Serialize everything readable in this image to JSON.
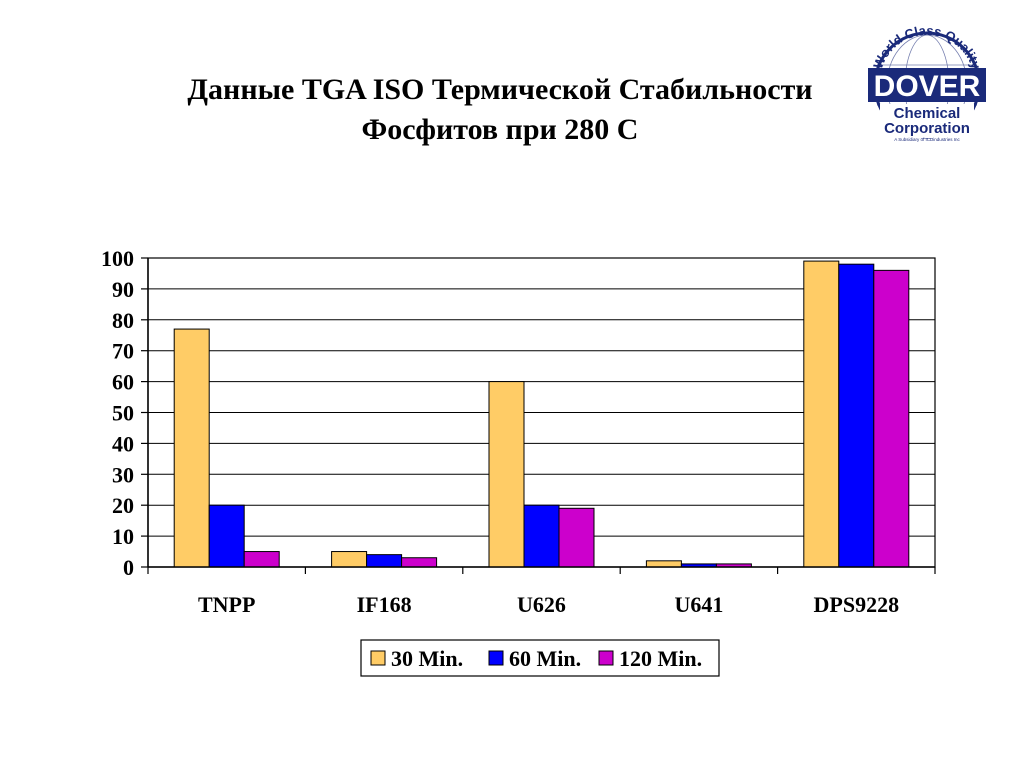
{
  "chart_data": {
    "type": "bar",
    "title_lines": [
      "Данные TGA ISO Термической Стабильности",
      "Фосфитов при 280 С"
    ],
    "xlabel": "",
    "ylabel": "",
    "ylim": [
      0,
      100
    ],
    "yticks": [
      0,
      10,
      20,
      30,
      40,
      50,
      60,
      70,
      80,
      90,
      100
    ],
    "categories": [
      "TNPP",
      "IF168",
      "U626",
      "U641",
      "DPS9228"
    ],
    "series": [
      {
        "name": "30 Min.",
        "color": "#FFCC66",
        "values": [
          77,
          5,
          60,
          2,
          99
        ]
      },
      {
        "name": "60 Min.",
        "color": "#0000FF",
        "values": [
          20,
          4,
          20,
          1,
          98
        ]
      },
      {
        "name": "120 Min.",
        "color": "#CC00CC",
        "values": [
          5,
          3,
          19,
          1,
          96
        ]
      }
    ],
    "grid": true,
    "legend_position": "bottom-center"
  },
  "logo": {
    "ring_text": "World Class Quality",
    "brand": "DOVER",
    "line1": "Chemical",
    "line2": "Corporation",
    "subline": "A Subsidiary of ICDindustries Inc"
  }
}
